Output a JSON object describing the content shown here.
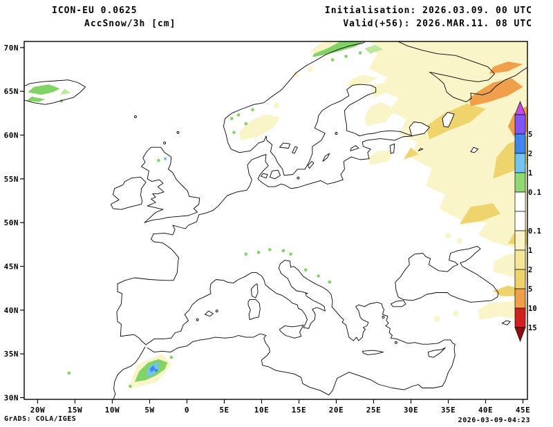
{
  "header": {
    "model": "ICON-EU 0.0625",
    "field": "AccSnow/3h [cm]",
    "init": "Initialisation: 2026.03.09. 00 UTC",
    "valid": "Valid(+56): 2026.MAR.11. 08 UTC"
  },
  "axes": {
    "lat_labels": [
      "70N",
      "65N",
      "60N",
      "55N",
      "50N",
      "45N",
      "40N",
      "35N",
      "30N"
    ],
    "lon_labels": [
      "20W",
      "15W",
      "10W",
      "5W",
      "0",
      "5E",
      "10E",
      "15E",
      "20E",
      "25E",
      "30E",
      "35E",
      "40E",
      "45E"
    ]
  },
  "colorbar": {
    "arrow_top_color": "#C44BE4",
    "arrow_bottom_color": "#8F0F10",
    "segments": [
      {
        "color": "#8153F2",
        "label": "5"
      },
      {
        "color": "#3F87EE",
        "label": "2"
      },
      {
        "color": "#72C3F1",
        "label": "1"
      },
      {
        "color": "#8FD973",
        "label": "0.1"
      },
      {
        "color": "#FFFFFF",
        "label": ""
      },
      {
        "color": "#FFFFFF",
        "label": "0.1"
      },
      {
        "color": "#FAF5C8",
        "label": "1"
      },
      {
        "color": "#F5E79A",
        "label": "2"
      },
      {
        "color": "#EFD46E",
        "label": "5"
      },
      {
        "color": "#F0A04A",
        "label": "10"
      },
      {
        "color": "#D2201E",
        "label": "15"
      }
    ]
  },
  "palette": {
    "trace": "#FAF5C8",
    "light": "#EFD46E",
    "moderate": "#F0A04A",
    "green": "#82D366",
    "light_green": "#B9E89C",
    "cyan": "#72C3F1",
    "blue": "#3F87EE",
    "coast": "#000000",
    "background": "#FFFFFF"
  },
  "footer": {
    "left": "GrADS: COLA/IGES",
    "right": "2026-03-09-04:23"
  }
}
